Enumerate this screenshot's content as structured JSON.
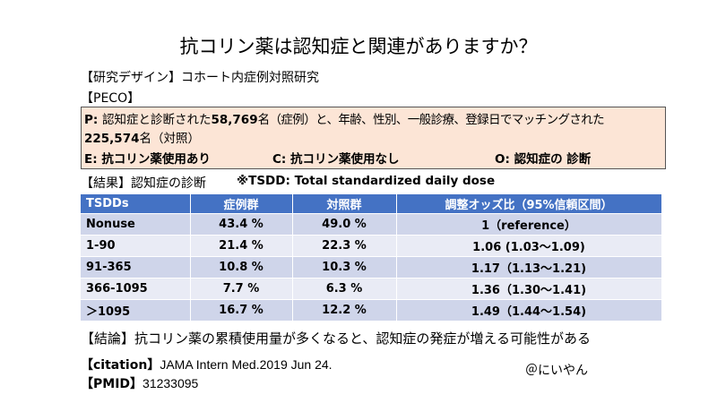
{
  "title": "抗コリン薬は認知症と関連がありますか？",
  "design": "【研究デザイン】コホート内症例対照研究",
  "peco_label": "【PECO】",
  "peco": {
    "p_prefix": "P: ",
    "p_text_1": "認知症と診断された",
    "p_count_cases": "58,769",
    "p_text_2": "名（症例）と、年齢、性別、一般診療、登録日でマッチングされた",
    "p_count_controls": "225,574",
    "p_text_3": "名（対照）",
    "e": "E: 抗コリン薬使用あり",
    "c": "C: 抗コリン薬使用なし",
    "o": "O: 認知症の 診断"
  },
  "result_label": "【結果】認知症の診断",
  "tsdd_note": "※TSDD: Total standardized daily dose",
  "table": {
    "headers": [
      "TSDDs",
      "症例群",
      "対照群",
      "調整オッズ比（95%信頼区間）"
    ],
    "rows": [
      [
        "Nonuse",
        "43.4 %",
        "49.0 %",
        "1（reference）"
      ],
      [
        "1-90",
        "21.4 %",
        "22.3 %",
        "1.06 (1.03〜1.09)"
      ],
      [
        "91-365",
        "10.8 %",
        "10.3 %",
        "1.17（1.13〜1.21)"
      ],
      [
        "366-1095",
        "7.7 %",
        "6.3 %",
        "1.36（1.30〜1.41)"
      ],
      [
        "＞1095",
        "16.7 %",
        "12.2 %",
        "1.49（1.44〜1.54)"
      ]
    ]
  },
  "conclusion": "【結論】抗コリン薬の累積使用量が多くなると、認知症の発症が増える可能性がある",
  "citation_label": "【citation】",
  "citation": "JAMA Intern Med.2019  Jun 24.",
  "pmid_label": "【PMID】",
  "pmid": "31233095",
  "author": "＠にいやん",
  "colors": {
    "header_blue": "#4472c4",
    "row_dark": "#cfd5ea",
    "row_light": "#e9ebf5",
    "peco_bg": "#fce5d6"
  }
}
